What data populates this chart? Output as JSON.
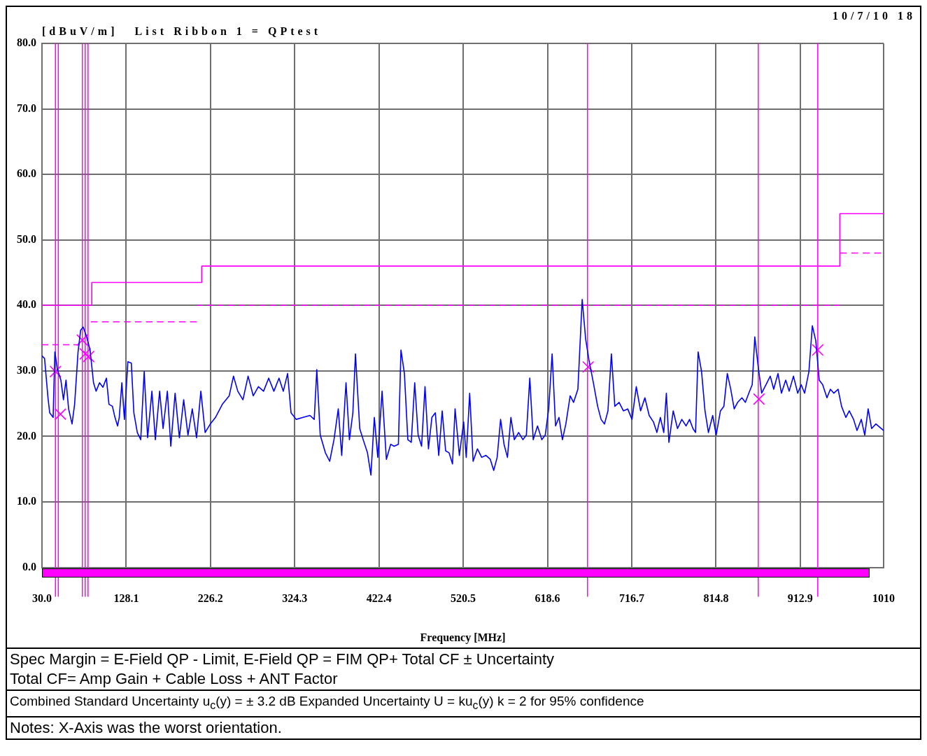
{
  "chart_data": {
    "type": "line",
    "title": "List Ribbon 1 = QPtest",
    "ylabel": "[dBuV/m]",
    "xlabel": "Frequency [MHz]",
    "annotations": [
      "10/7/10 18",
      "Spec Margin = E-Field QP - Limit,   E-Field QP = FIM QP+ Total CF ± Uncertainty",
      "Total CF= Amp Gain + Cable Loss + ANT Factor",
      "Combined Standard Uncertainty u$_{c}$(y) = ± 3.2 dB    Expanded Uncertainty U = ku$_{c}$(y)     k = 2 for 95% confidence",
      "Notes:  X-Axis was the worst orientation."
    ],
    "xlim": [
      30,
      1010
    ],
    "ylim": [
      0,
      80
    ],
    "xticks": [
      {
        "value": 30,
        "label": "30.0"
      },
      128.1,
      226.2,
      324.3,
      422.4,
      520.5,
      618.6,
      716.7,
      814.8,
      912.9,
      1010
    ],
    "yticks": [
      {
        "value": 0,
        "label": "0.0"
      },
      {
        "value": 10,
        "label": "10.0"
      },
      {
        "value": 20,
        "label": "20.0"
      },
      {
        "value": 30,
        "label": "30.0"
      },
      {
        "value": 40,
        "label": "40.0"
      },
      {
        "value": 50,
        "label": "50.0"
      },
      {
        "value": 60,
        "label": "60.0"
      },
      {
        "value": 70,
        "label": "70.0"
      },
      {
        "value": 80,
        "label": "80.0"
      }
    ],
    "grid": true,
    "legend": false,
    "ref_lines": [
      {
        "axis": "x",
        "value": 45.7,
        "color": "#ff00ff"
      },
      {
        "axis": "x",
        "value": 49,
        "color": "#ff00ff"
      },
      {
        "axis": "x",
        "value": 77,
        "color": "#ff00ff"
      },
      {
        "axis": "x",
        "value": 80.3,
        "color": "#ff00ff"
      },
      {
        "axis": "x",
        "value": 83.6,
        "color": "#ff00ff"
      },
      {
        "axis": "x",
        "value": 665.2,
        "color": "#ff00ff"
      },
      {
        "axis": "x",
        "value": 864,
        "color": "#ff00ff"
      },
      {
        "axis": "x",
        "value": 933.3,
        "color": "#ff00ff"
      }
    ],
    "series": [
      {
        "color": "#0000ff",
        "marker": "none",
        "x": [
          30,
          33,
          37,
          39,
          43,
          45,
          48,
          52,
          55,
          58,
          61,
          65,
          68,
          72,
          75,
          78,
          82,
          86,
          90,
          93,
          97,
          101,
          105,
          108,
          112,
          115,
          118,
          120,
          123,
          126,
          130,
          134,
          137,
          141,
          145,
          149,
          153,
          158,
          162,
          167,
          171,
          176,
          180,
          185,
          190,
          195,
          200,
          205,
          210,
          215,
          220,
          226,
          232,
          240,
          248,
          253,
          258,
          264,
          270,
          276,
          282,
          288,
          294,
          300,
          306,
          311,
          316,
          320,
          326,
          334,
          342,
          347,
          350,
          354,
          360,
          365,
          370,
          375,
          379,
          384,
          388,
          392,
          395,
          400,
          404,
          409,
          413,
          417,
          421,
          426,
          431,
          436,
          440,
          445,
          448,
          452,
          456,
          460,
          464,
          468,
          472,
          476,
          480,
          484,
          488,
          492,
          496,
          500,
          504,
          508,
          511,
          516,
          521,
          524,
          528,
          532,
          537,
          542,
          547,
          552,
          556,
          560,
          564,
          568,
          572,
          576,
          580,
          585,
          590,
          594,
          598,
          602,
          607,
          612,
          616,
          620,
          624,
          628,
          632,
          636,
          640,
          645,
          649,
          654,
          659,
          663,
          667,
          672,
          677,
          681,
          685,
          689,
          693,
          697,
          702,
          707,
          712,
          717,
          722,
          727,
          732,
          737,
          742,
          746,
          750,
          754,
          757,
          760,
          765,
          770,
          775,
          780,
          784,
          788,
          791,
          794,
          798,
          802,
          806,
          811,
          815,
          820,
          824,
          828,
          832,
          836,
          840,
          845,
          849,
          853,
          857,
          860,
          864,
          868,
          873,
          878,
          882,
          887,
          891,
          896,
          900,
          905,
          910,
          914,
          918,
          923,
          927,
          931,
          935,
          939,
          944,
          948,
          952,
          957,
          961,
          966,
          970,
          975,
          979,
          984,
          988,
          992,
          996,
          1001,
          1010
        ],
        "values": [
          32.3,
          31.9,
          25.9,
          23.6,
          22.9,
          32.9,
          30.2,
          28.6,
          25.6,
          28.6,
          24.2,
          21.9,
          24.9,
          32.9,
          36.2,
          36.7,
          35.2,
          33.2,
          28.2,
          26.9,
          28.2,
          27.5,
          28.9,
          24.9,
          24.6,
          22.9,
          21.6,
          22.9,
          28.2,
          22.6,
          31.4,
          31.2,
          23.6,
          20.6,
          19.5,
          29.9,
          19.8,
          26.9,
          19.5,
          26.9,
          21.2,
          26.9,
          18.5,
          26.6,
          19.8,
          25.6,
          20.2,
          24.2,
          19.8,
          26.9,
          20.6,
          21.9,
          22.9,
          24.9,
          26.2,
          29.2,
          26.9,
          25.6,
          29.2,
          26.2,
          27.6,
          26.9,
          28.9,
          26.9,
          28.9,
          26.9,
          29.6,
          23.6,
          22.6,
          22.9,
          23.2,
          22.6,
          30.2,
          20.2,
          17.5,
          16.2,
          19.5,
          24.2,
          17.1,
          28.2,
          19.5,
          23.6,
          32.6,
          21.2,
          19.5,
          17.5,
          14.1,
          22.9,
          16.8,
          26.9,
          16.5,
          18.8,
          18.5,
          18.8,
          33.2,
          29.6,
          19.5,
          19.1,
          28.2,
          20.2,
          18.5,
          27.6,
          18.1,
          22.9,
          23.6,
          17.1,
          23.9,
          17.8,
          17.5,
          15.8,
          24.2,
          17.1,
          22.2,
          16.8,
          26.6,
          16.2,
          18.1,
          16.8,
          17.1,
          16.5,
          14.8,
          16.8,
          22.6,
          18.8,
          16.8,
          22.9,
          19.5,
          20.6,
          19.5,
          20.2,
          28.9,
          19.5,
          21.6,
          19.5,
          20.2,
          24.2,
          32.6,
          21.6,
          22.9,
          19.5,
          21.9,
          26.2,
          25.2,
          27.2,
          40.9,
          34.9,
          31.6,
          28.2,
          24.6,
          22.6,
          21.9,
          23.9,
          32.6,
          24.6,
          25.2,
          23.9,
          24.2,
          22.6,
          27.6,
          23.9,
          25.9,
          23.2,
          22.2,
          20.6,
          22.9,
          20.6,
          26.6,
          19.1,
          23.9,
          21.2,
          22.6,
          21.6,
          22.6,
          21.2,
          20.6,
          32.9,
          29.9,
          23.9,
          20.6,
          23.2,
          20.2,
          23.9,
          24.6,
          29.6,
          27.2,
          24.2,
          25.2,
          25.9,
          25.2,
          26.6,
          27.9,
          35.2,
          30.6,
          26.6,
          27.9,
          29.2,
          27.2,
          29.6,
          26.6,
          28.6,
          26.9,
          29.2,
          26.6,
          27.9,
          26.6,
          29.9,
          36.9,
          34.6,
          28.6,
          27.9,
          25.9,
          27.2,
          26.6,
          27.2,
          24.6,
          22.9,
          23.9,
          22.6,
          20.9,
          22.6,
          20.2,
          24.2,
          21.2,
          21.9,
          20.9
        ]
      },
      {
        "color": "#ff00ff",
        "marker": "none",
        "line_style": "solid",
        "x": [
          30,
          88,
          88,
          216,
          216,
          959,
          959,
          1010
        ],
        "values": [
          40,
          40,
          43.5,
          43.5,
          46,
          46,
          54,
          54
        ]
      },
      {
        "color": "#ff00ff",
        "marker": "none",
        "line_style": "dashed",
        "x": [
          30,
          74
        ],
        "values": [
          34,
          34
        ]
      },
      {
        "color": "#ff00ff",
        "marker": "none",
        "line_style": "dashed",
        "x": [
          87,
          210
        ],
        "values": [
          37.5,
          37.5
        ]
      },
      {
        "color": "#ff00ff",
        "marker": "none",
        "line_style": "dashed",
        "x": [
          210,
          959
        ],
        "values": [
          40,
          40
        ]
      },
      {
        "color": "#ff00ff",
        "marker": "none",
        "line_style": "dashed",
        "x": [
          959,
          1007
        ],
        "values": [
          48,
          48
        ]
      },
      {
        "type": "scatter",
        "color": "#ff00ff",
        "marker": "cross",
        "x": [
          45.7,
          51.5,
          77,
          80.3,
          84.4,
          666,
          864.9,
          933.3
        ],
        "values": [
          29.9,
          23.4,
          34.7,
          32.6,
          32.2,
          30.6,
          25.7,
          33.2
        ]
      }
    ]
  }
}
